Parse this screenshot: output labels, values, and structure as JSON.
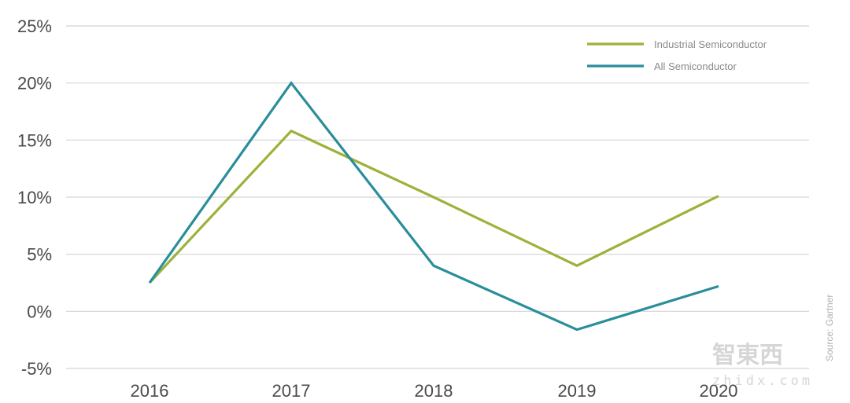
{
  "chart_data": {
    "type": "line",
    "categories": [
      "2016",
      "2017",
      "2018",
      "2019",
      "2020"
    ],
    "series": [
      {
        "name": "Industrial Semiconductor",
        "values": [
          2.5,
          15.8,
          10.0,
          4.0,
          10.1
        ],
        "color": "#9bb33a"
      },
      {
        "name": "All Semiconductor",
        "values": [
          2.5,
          20.0,
          4.0,
          -1.6,
          2.2
        ],
        "color": "#2a8e9a"
      }
    ],
    "y_ticks": [
      "25%",
      "20%",
      "15%",
      "10%",
      "5%",
      "0%",
      "-5%"
    ],
    "ylim": [
      -5,
      25
    ],
    "y_tick_values": [
      25,
      20,
      15,
      10,
      5,
      0,
      -5
    ],
    "grid": true,
    "legend_position": "top-right",
    "source": "Source: Gartner"
  },
  "watermark": {
    "text": "智東西",
    "sub": "zhidx.com"
  }
}
